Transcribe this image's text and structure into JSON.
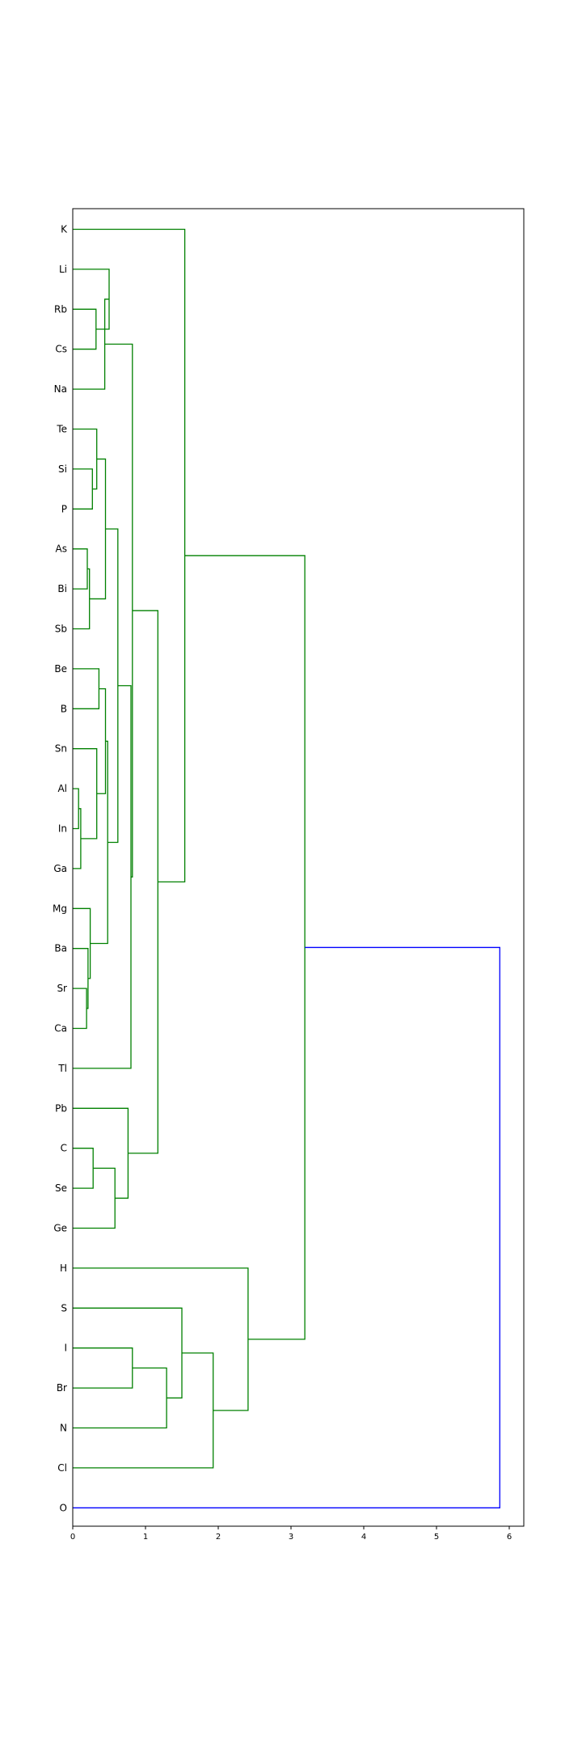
{
  "chart_data": {
    "type": "dendrogram",
    "orientation": "right",
    "xlim": [
      0,
      6.2
    ],
    "x_ticks": [
      0,
      1,
      2,
      3,
      4,
      5,
      6
    ],
    "grid": false,
    "colors": {
      "cluster_1": "#008000",
      "root_link": "#0000ff",
      "frame": "#000000"
    },
    "leaves": [
      "K",
      "Li",
      "Rb",
      "Cs",
      "Na",
      "Te",
      "Si",
      "P",
      "As",
      "Bi",
      "Sb",
      "Be",
      "B",
      "Sn",
      "Al",
      "In",
      "Ga",
      "Mg",
      "Ba",
      "Sr",
      "Ca",
      "Tl",
      "Pb",
      "C",
      "Se",
      "Ge",
      "H",
      "S",
      "I",
      "Br",
      "N",
      "Cl",
      "O"
    ],
    "links": [
      {
        "id": 1,
        "a": "Rb",
        "b": "Cs",
        "height": 0.32,
        "color": "cluster_1"
      },
      {
        "id": 2,
        "a": "c1",
        "b": "Li",
        "height": 0.5,
        "color": "cluster_1"
      },
      {
        "id": 3,
        "a": "c2",
        "b": "Na",
        "height": 0.44,
        "color": "cluster_1"
      },
      {
        "id": 4,
        "a": "Si",
        "b": "P",
        "height": 0.27,
        "color": "cluster_1"
      },
      {
        "id": 5,
        "a": "Te",
        "b": "c4",
        "height": 0.33,
        "color": "cluster_1"
      },
      {
        "id": 6,
        "a": "As",
        "b": "Bi",
        "height": 0.2,
        "color": "cluster_1"
      },
      {
        "id": 7,
        "a": "c6",
        "b": "Sb",
        "height": 0.23,
        "color": "cluster_1"
      },
      {
        "id": 8,
        "a": "c5",
        "b": "c7",
        "height": 0.45,
        "color": "cluster_1"
      },
      {
        "id": 9,
        "a": "Al",
        "b": "In",
        "height": 0.08,
        "color": "cluster_1"
      },
      {
        "id": 10,
        "a": "c9",
        "b": "Ga",
        "height": 0.11,
        "color": "cluster_1"
      },
      {
        "id": 11,
        "a": "Sn",
        "b": "c10",
        "height": 0.33,
        "color": "cluster_1"
      },
      {
        "id": 12,
        "a": "Be",
        "b": "B",
        "height": 0.36,
        "color": "cluster_1"
      },
      {
        "id": 13,
        "a": "c12",
        "b": "c11",
        "height": 0.45,
        "color": "cluster_1"
      },
      {
        "id": 14,
        "a": "Sr",
        "b": "Ca",
        "height": 0.19,
        "color": "cluster_1"
      },
      {
        "id": 15,
        "a": "Ba",
        "b": "c14",
        "height": 0.21,
        "color": "cluster_1"
      },
      {
        "id": 16,
        "a": "Mg",
        "b": "c15",
        "height": 0.24,
        "color": "cluster_1"
      },
      {
        "id": 17,
        "a": "c13",
        "b": "c16",
        "height": 0.48,
        "color": "cluster_1"
      },
      {
        "id": 18,
        "a": "c8",
        "b": "c17",
        "height": 0.62,
        "color": "cluster_1"
      },
      {
        "id": 19,
        "a": "c18",
        "b": "Tl",
        "height": 0.8,
        "color": "cluster_1"
      },
      {
        "id": 20,
        "a": "c3",
        "b": "c19",
        "height": 0.82,
        "color": "cluster_1"
      },
      {
        "id": 21,
        "a": "C",
        "b": "Se",
        "height": 0.28,
        "color": "cluster_1"
      },
      {
        "id": 22,
        "a": "c21",
        "b": "Ge",
        "height": 0.58,
        "color": "cluster_1"
      },
      {
        "id": 23,
        "a": "Pb",
        "b": "c22",
        "height": 0.76,
        "color": "cluster_1"
      },
      {
        "id": 24,
        "a": "c20",
        "b": "c23",
        "height": 1.17,
        "color": "cluster_1"
      },
      {
        "id": 25,
        "a": "K",
        "b": "c24",
        "height": 1.54,
        "color": "cluster_1"
      },
      {
        "id": 26,
        "a": "I",
        "b": "Br",
        "height": 0.82,
        "color": "cluster_1"
      },
      {
        "id": 27,
        "a": "c26",
        "b": "N",
        "height": 1.29,
        "color": "cluster_1"
      },
      {
        "id": 28,
        "a": "S",
        "b": "c27",
        "height": 1.5,
        "color": "cluster_1"
      },
      {
        "id": 29,
        "a": "c28",
        "b": "Cl",
        "height": 1.93,
        "color": "cluster_1"
      },
      {
        "id": 30,
        "a": "H",
        "b": "c29",
        "height": 2.41,
        "color": "cluster_1"
      },
      {
        "id": 31,
        "a": "c25",
        "b": "c30",
        "height": 3.19,
        "color": "cluster_1"
      },
      {
        "id": 32,
        "a": "c31",
        "b": "O",
        "height": 5.87,
        "color": "root_link"
      }
    ]
  }
}
